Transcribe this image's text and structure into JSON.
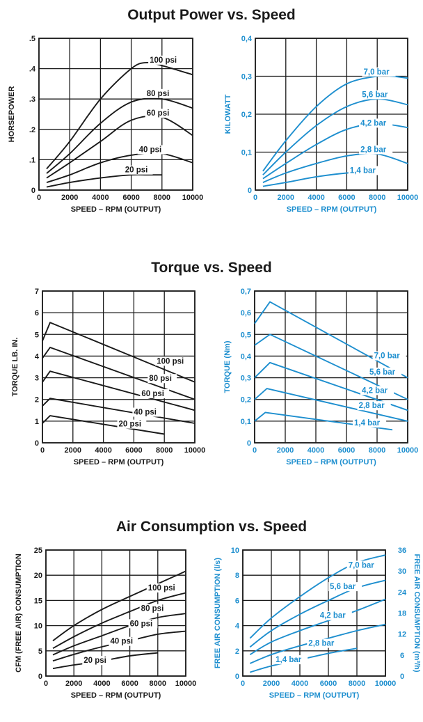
{
  "sections": [
    {
      "title": "Output Power vs. Speed"
    },
    {
      "title": "Torque vs. Speed"
    },
    {
      "title": "Air Consumption vs. Speed"
    }
  ],
  "colors": {
    "black": "#1a1a1a",
    "blue": "#1e8fcf",
    "grid": "#1a1a1a"
  },
  "chart_data": [
    {
      "id": "power-imperial",
      "type": "line",
      "color": "black",
      "xlabel": "SPEED – RPM (OUTPUT)",
      "ylabel": "HORSEPOWER",
      "xlim": [
        0,
        10000
      ],
      "ylim": [
        0,
        0.5
      ],
      "xticks": [
        0,
        2000,
        4000,
        6000,
        8000,
        10000
      ],
      "xtick_labels": [
        "0",
        "2000",
        "4000",
        "6000",
        "8000",
        "10000"
      ],
      "yticks": [
        0,
        0.1,
        0.2,
        0.3,
        0.4,
        0.5
      ],
      "ytick_labels": [
        "0",
        ".1",
        ".2",
        ".3",
        ".4",
        ".5"
      ],
      "grid": true,
      "series": [
        {
          "name": "100 psi",
          "x": [
            500,
            2000,
            4000,
            6000,
            7000,
            8000,
            10000
          ],
          "y": [
            0.07,
            0.16,
            0.3,
            0.4,
            0.42,
            0.41,
            0.38
          ],
          "label_at": [
            7200,
            0.42
          ]
        },
        {
          "name": "80 psi",
          "x": [
            500,
            2000,
            4000,
            6000,
            8000,
            10000
          ],
          "y": [
            0.055,
            0.12,
            0.22,
            0.29,
            0.3,
            0.27
          ],
          "label_at": [
            7000,
            0.31
          ]
        },
        {
          "name": "60 psi",
          "x": [
            500,
            2000,
            4000,
            6000,
            8000,
            10000
          ],
          "y": [
            0.04,
            0.09,
            0.16,
            0.23,
            0.24,
            0.18
          ],
          "label_at": [
            7000,
            0.245
          ]
        },
        {
          "name": "40 psi",
          "x": [
            500,
            2000,
            4000,
            6000,
            8000,
            10000
          ],
          "y": [
            0.025,
            0.05,
            0.09,
            0.115,
            0.12,
            0.09
          ],
          "label_at": [
            6500,
            0.125
          ]
        },
        {
          "name": "20 psi",
          "x": [
            500,
            2000,
            4000,
            6000,
            7000,
            8000
          ],
          "y": [
            0.01,
            0.025,
            0.04,
            0.05,
            0.05,
            0.05
          ],
          "label_at": [
            5600,
            0.058
          ]
        }
      ]
    },
    {
      "id": "power-metric",
      "type": "line",
      "color": "blue",
      "xlabel": "SPEED – RPM (OUTPUT)",
      "ylabel": "KILOWATT",
      "xlim": [
        0,
        10000
      ],
      "ylim": [
        0,
        0.4
      ],
      "xticks": [
        0,
        2000,
        4000,
        6000,
        8000,
        10000
      ],
      "xtick_labels": [
        "0",
        "2000",
        "4000",
        "6000",
        "8000",
        "10000"
      ],
      "yticks": [
        0,
        0.1,
        0.2,
        0.3,
        0.4
      ],
      "ytick_labels": [
        "0",
        "0,1",
        "0,2",
        "0,3",
        "0,4"
      ],
      "grid": true,
      "series": [
        {
          "name": "7,0 bar",
          "x": [
            500,
            2000,
            4000,
            6000,
            8000,
            9000,
            10000
          ],
          "y": [
            0.05,
            0.13,
            0.22,
            0.28,
            0.3,
            0.3,
            0.295
          ],
          "label_at": [
            7100,
            0.305
          ]
        },
        {
          "name": "5,6 bar",
          "x": [
            500,
            2000,
            4000,
            6000,
            8000,
            10000
          ],
          "y": [
            0.04,
            0.1,
            0.17,
            0.22,
            0.24,
            0.225
          ],
          "label_at": [
            7000,
            0.245
          ]
        },
        {
          "name": "4,2 bar",
          "x": [
            500,
            2000,
            4000,
            6000,
            8000,
            10000
          ],
          "y": [
            0.03,
            0.07,
            0.12,
            0.16,
            0.175,
            0.165
          ],
          "label_at": [
            6900,
            0.17
          ]
        },
        {
          "name": "2,8 bar",
          "x": [
            500,
            2000,
            4000,
            6000,
            8000,
            10000
          ],
          "y": [
            0.02,
            0.045,
            0.07,
            0.09,
            0.095,
            0.07
          ],
          "label_at": [
            6900,
            0.1
          ]
        },
        {
          "name": "1,4 bar",
          "x": [
            500,
            2000,
            4000,
            6000,
            8000
          ],
          "y": [
            0.01,
            0.02,
            0.035,
            0.045,
            0.05
          ],
          "label_at": [
            6200,
            0.045
          ]
        }
      ]
    },
    {
      "id": "torque-imperial",
      "type": "line",
      "color": "black",
      "xlabel": "SPEED – RPM (OUTPUT)",
      "ylabel": "TORQUE LB. IN.",
      "xlim": [
        0,
        10000
      ],
      "ylim": [
        0,
        7
      ],
      "xticks": [
        0,
        2000,
        4000,
        6000,
        8000,
        10000
      ],
      "xtick_labels": [
        "0",
        "2000",
        "4000",
        "6000",
        "8000",
        "10000"
      ],
      "yticks": [
        0,
        1,
        2,
        3,
        4,
        5,
        6,
        7
      ],
      "ytick_labels": [
        "0",
        "1",
        "2",
        "3",
        "4",
        "5",
        "6",
        "7"
      ],
      "grid": true,
      "series": [
        {
          "name": "100 psi",
          "x": [
            0,
            500,
            10000
          ],
          "y": [
            4.7,
            5.55,
            2.8
          ],
          "label_at": [
            7500,
            3.65
          ]
        },
        {
          "name": "80 psi",
          "x": [
            0,
            500,
            10000
          ],
          "y": [
            3.9,
            4.4,
            2.0
          ],
          "label_at": [
            7000,
            2.85
          ]
        },
        {
          "name": "60 psi",
          "x": [
            0,
            500,
            10000
          ],
          "y": [
            2.8,
            3.3,
            1.5
          ],
          "label_at": [
            6500,
            2.15
          ]
        },
        {
          "name": "40 psi",
          "x": [
            0,
            500,
            10000
          ],
          "y": [
            1.7,
            2.05,
            0.9
          ],
          "label_at": [
            6000,
            1.3
          ]
        },
        {
          "name": "20 psi",
          "x": [
            0,
            500,
            8000
          ],
          "y": [
            0.9,
            1.25,
            0.4
          ],
          "label_at": [
            5000,
            0.75
          ]
        }
      ]
    },
    {
      "id": "torque-metric",
      "type": "line",
      "color": "blue",
      "xlabel": "SPEED – RPM (OUTPUT)",
      "ylabel": "TORQUE (Nm)",
      "xlim": [
        0,
        10000
      ],
      "ylim": [
        0,
        0.7
      ],
      "xticks": [
        0,
        2000,
        4000,
        6000,
        8000,
        10000
      ],
      "xtick_labels": [
        "0",
        "2000",
        "4000",
        "6000",
        "8000",
        "10000"
      ],
      "yticks": [
        0,
        0.1,
        0.2,
        0.3,
        0.4,
        0.5,
        0.6,
        0.7
      ],
      "ytick_labels": [
        "0",
        "0,1",
        "0,2",
        "0,3",
        "0,4",
        "0,5",
        "0,6",
        "0,7"
      ],
      "grid": true,
      "series": [
        {
          "name": "7,0 bar",
          "x": [
            0,
            1000,
            10000
          ],
          "y": [
            0.55,
            0.65,
            0.3
          ],
          "label_at": [
            7800,
            0.39
          ]
        },
        {
          "name": "5,6 bar",
          "x": [
            0,
            1000,
            10000
          ],
          "y": [
            0.45,
            0.5,
            0.2
          ],
          "label_at": [
            7500,
            0.315
          ]
        },
        {
          "name": "4,2 bar",
          "x": [
            0,
            1000,
            10000
          ],
          "y": [
            0.3,
            0.37,
            0.15
          ],
          "label_at": [
            7000,
            0.23
          ]
        },
        {
          "name": "2,8 bar",
          "x": [
            0,
            800,
            10000
          ],
          "y": [
            0.2,
            0.25,
            0.1
          ],
          "label_at": [
            6800,
            0.16
          ]
        },
        {
          "name": "1,4 bar",
          "x": [
            0,
            700,
            9000
          ],
          "y": [
            0.1,
            0.14,
            0.06
          ],
          "label_at": [
            6500,
            0.08
          ]
        }
      ]
    },
    {
      "id": "air-imperial",
      "type": "line",
      "color": "black",
      "xlabel": "SPEED – RPM (OUTPUT)",
      "ylabel": "CFM (FREE AIR) CONSUMPTION",
      "xlim": [
        0,
        10000
      ],
      "ylim": [
        0,
        25
      ],
      "xticks": [
        0,
        2000,
        4000,
        6000,
        8000,
        10000
      ],
      "xtick_labels": [
        "0",
        "2000",
        "4000",
        "6000",
        "8000",
        "10000"
      ],
      "yticks": [
        0,
        5,
        10,
        15,
        20,
        25
      ],
      "ytick_labels": [
        "0",
        "5",
        "10",
        "15",
        "20",
        "25"
      ],
      "grid": true,
      "series": [
        {
          "name": "100 psi",
          "x": [
            500,
            2000,
            4000,
            6000,
            8000,
            10000
          ],
          "y": [
            7.0,
            10.0,
            13.2,
            15.8,
            18.3,
            20.8
          ],
          "label_at": [
            7300,
            17.0
          ]
        },
        {
          "name": "80 psi",
          "x": [
            500,
            2000,
            4000,
            6000,
            8000,
            10000
          ],
          "y": [
            5.5,
            7.8,
            10.5,
            12.8,
            15.0,
            16.5
          ],
          "label_at": [
            6800,
            12.9
          ]
        },
        {
          "name": "60 psi",
          "x": [
            500,
            2000,
            4000,
            6000,
            8000,
            10000
          ],
          "y": [
            4.2,
            6.0,
            8.0,
            10.0,
            11.6,
            12.4
          ],
          "label_at": [
            6000,
            9.9
          ]
        },
        {
          "name": "40 psi",
          "x": [
            500,
            2000,
            4000,
            6000,
            8000,
            10000
          ],
          "y": [
            3.0,
            4.3,
            5.8,
            7.0,
            8.3,
            8.9
          ],
          "label_at": [
            4600,
            6.4
          ]
        },
        {
          "name": "20 psi",
          "x": [
            500,
            2000,
            4000,
            6000,
            8000
          ],
          "y": [
            1.5,
            2.2,
            3.0,
            4.0,
            4.6
          ],
          "label_at": [
            2700,
            2.6
          ]
        }
      ]
    },
    {
      "id": "air-metric",
      "type": "line",
      "color": "blue",
      "xlabel": "SPEED – RPM (OUTPUT)",
      "ylabel": "FREE AIR CONSUMPTION (l/s)",
      "y2label": "FREE AIR CONSUMPTION (m³/h)",
      "xlim": [
        0,
        10000
      ],
      "ylim": [
        0,
        10
      ],
      "y2lim": [
        0,
        36
      ],
      "xticks": [
        0,
        2000,
        4000,
        6000,
        8000,
        10000
      ],
      "xtick_labels": [
        "0",
        "2000",
        "4000",
        "6000",
        "8000",
        "10000"
      ],
      "yticks": [
        0,
        2,
        4,
        6,
        8,
        10
      ],
      "ytick_labels": [
        "0",
        "2",
        "4",
        "6",
        "8",
        "10"
      ],
      "y2ticks": [
        0,
        6,
        12,
        18,
        24,
        30,
        36
      ],
      "y2tick_labels": [
        "0",
        "6",
        "12",
        "18",
        "24",
        "30",
        "36"
      ],
      "grid": true,
      "series": [
        {
          "name": "7,0 bar",
          "x": [
            500,
            2000,
            4000,
            6000,
            8000,
            10000
          ],
          "y": [
            3.0,
            4.6,
            6.3,
            7.8,
            9.0,
            9.6
          ],
          "label_at": [
            7400,
            8.6
          ]
        },
        {
          "name": "5,6 bar",
          "x": [
            500,
            2000,
            4000,
            6000,
            8000,
            10000
          ],
          "y": [
            2.3,
            3.6,
            4.9,
            6.0,
            7.0,
            7.6
          ],
          "label_at": [
            6100,
            6.9
          ]
        },
        {
          "name": "4,2 bar",
          "x": [
            500,
            2000,
            4000,
            6000,
            8000,
            10000
          ],
          "y": [
            1.7,
            2.7,
            3.6,
            4.4,
            5.2,
            6.1
          ],
          "label_at": [
            5400,
            4.6
          ]
        },
        {
          "name": "2,8 bar",
          "x": [
            500,
            2000,
            4000,
            6000,
            8000,
            10000
          ],
          "y": [
            1.0,
            1.7,
            2.4,
            3.0,
            3.6,
            4.1
          ],
          "label_at": [
            4600,
            2.4
          ]
        },
        {
          "name": "1,4 bar",
          "x": [
            500,
            2000,
            4000,
            6000,
            8000
          ],
          "y": [
            0.3,
            0.8,
            1.3,
            1.8,
            2.2
          ],
          "label_at": [
            2300,
            1.1
          ]
        }
      ]
    }
  ]
}
